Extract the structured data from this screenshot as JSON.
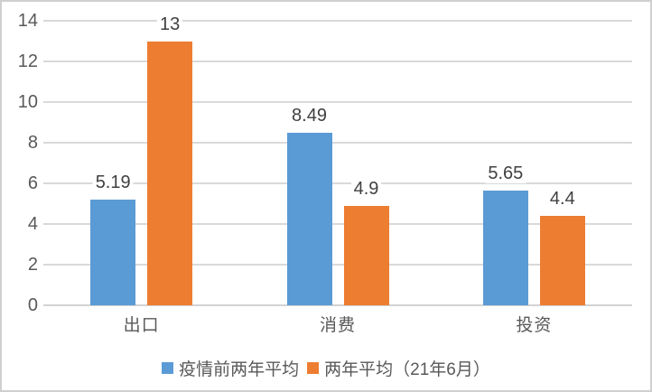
{
  "chart_data": {
    "type": "bar",
    "title": "",
    "xlabel": "",
    "ylabel": "",
    "categories": [
      "出口",
      "消费",
      "投资"
    ],
    "series": [
      {
        "name": "疫情前两年平均",
        "color": "#5B9BD5",
        "values": [
          5.19,
          8.49,
          5.65
        ],
        "labels": [
          "5.19",
          "8.49",
          "5.65"
        ]
      },
      {
        "name": "两年平均（21年6月）",
        "color": "#ED7D31",
        "values": [
          13,
          4.9,
          4.4
        ],
        "labels": [
          "13",
          "4.9",
          "4.4"
        ]
      }
    ],
    "ylim": [
      0,
      14
    ],
    "yticks": [
      0,
      2,
      4,
      6,
      8,
      10,
      12,
      14
    ],
    "grid": true,
    "gridline_color": "#d9d9d9",
    "axis_text_color": "#595959",
    "data_label_color": "#404040",
    "legend_position": "bottom"
  }
}
